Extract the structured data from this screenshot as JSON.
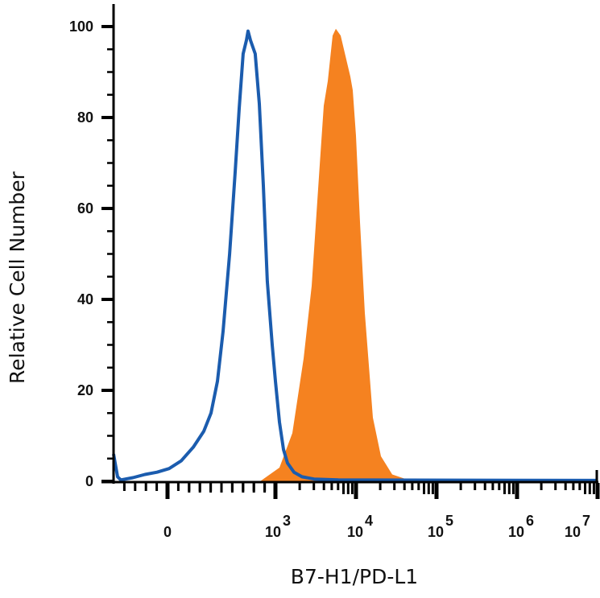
{
  "chart_data": {
    "type": "area",
    "xlabel": "B7-H1/PD-L1",
    "ylabel": "Relative Cell Number",
    "xscale": "logicle (linear near zero, log above 10^3)",
    "xlim": [
      -500,
      10000000
    ],
    "ylim": [
      0,
      100
    ],
    "grid": false,
    "legend": "none",
    "y_ticks": [
      {
        "value": 0,
        "label": "0"
      },
      {
        "value": 20,
        "label": "20"
      },
      {
        "value": 40,
        "label": "40"
      },
      {
        "value": 60,
        "label": "60"
      },
      {
        "value": 80,
        "label": "80"
      },
      {
        "value": 100,
        "label": "100"
      }
    ],
    "x_ticks": [
      {
        "value": 0,
        "base": "0",
        "exp": ""
      },
      {
        "value": 1000,
        "base": "10",
        "exp": "3"
      },
      {
        "value": 10000,
        "base": "10",
        "exp": "4"
      },
      {
        "value": 100000,
        "base": "10",
        "exp": "5"
      },
      {
        "value": 1000000,
        "base": "10",
        "exp": "6"
      },
      {
        "value": 10000000,
        "base": "10",
        "exp": "7"
      }
    ],
    "series": [
      {
        "style": "filled",
        "color": "#f58220",
        "points": [
          [
            -500,
            0
          ],
          [
            858,
            0
          ],
          [
            1122,
            3
          ],
          [
            1622,
            10.6
          ],
          [
            2239,
            27
          ],
          [
            2818,
            43
          ],
          [
            3548,
            69.6
          ],
          [
            3981,
            82.6
          ],
          [
            4467,
            88
          ],
          [
            5129,
            98
          ],
          [
            5623,
            99.5
          ],
          [
            6457,
            98
          ],
          [
            8511,
            89
          ],
          [
            9120,
            86
          ],
          [
            10000,
            76
          ],
          [
            11220,
            57
          ],
          [
            12882,
            37
          ],
          [
            16218,
            14
          ],
          [
            20417,
            5.5
          ],
          [
            28184,
            1.5
          ],
          [
            44668,
            0.3
          ],
          [
            9500000,
            0
          ]
        ]
      },
      {
        "style": "outline",
        "color": "#1b5cae",
        "points": [
          [
            -500,
            6
          ],
          [
            -463,
            1
          ],
          [
            -433,
            0.3
          ],
          [
            -321,
            0.8
          ],
          [
            -209,
            1.5
          ],
          [
            -97,
            2
          ],
          [
            15,
            2.8
          ],
          [
            127,
            4.5
          ],
          [
            239,
            7.5
          ],
          [
            336,
            11
          ],
          [
            403,
            15
          ],
          [
            463,
            22
          ],
          [
            515,
            33
          ],
          [
            575,
            50
          ],
          [
            627,
            68
          ],
          [
            664,
            82
          ],
          [
            701,
            94
          ],
          [
            731,
            97
          ],
          [
            746,
            99
          ],
          [
            769,
            97
          ],
          [
            813,
            94
          ],
          [
            851,
            83
          ],
          [
            888,
            65
          ],
          [
            925,
            44
          ],
          [
            970,
            30
          ],
          [
            1000,
            22
          ],
          [
            1122,
            13
          ],
          [
            1259,
            7
          ],
          [
            1413,
            4
          ],
          [
            1698,
            2
          ],
          [
            2138,
            1
          ],
          [
            3020,
            0.5
          ],
          [
            6026,
            0.3
          ],
          [
            9500000,
            0.2
          ]
        ]
      }
    ]
  }
}
